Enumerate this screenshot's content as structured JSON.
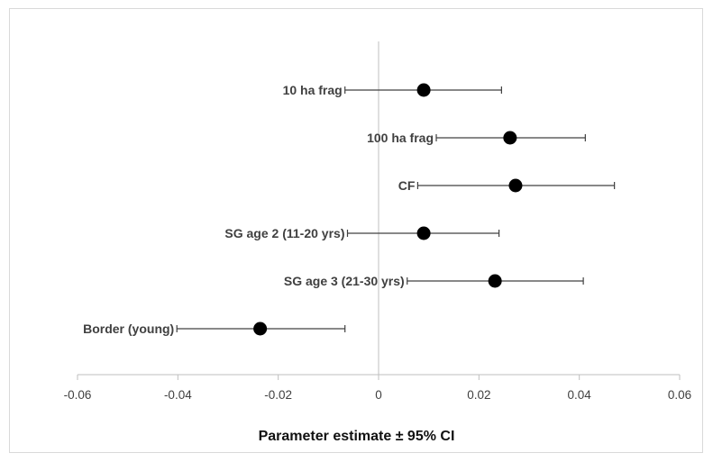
{
  "chart_data": {
    "type": "scatter",
    "xlabel": "Parameter estimate ± 95% CI",
    "xlim": [
      -0.06,
      0.06
    ],
    "xticks": [
      -0.06,
      -0.04,
      -0.02,
      0,
      0.02,
      0.04,
      0.06
    ],
    "xtick_labels": [
      "-0.06",
      "-0.04",
      "-0.02",
      "0",
      "0.02",
      "0.04",
      "0.06"
    ],
    "grid": false,
    "categories": [
      "10 ha frag",
      "100 ha frag",
      "CF",
      "SG age 2 (11-20 yrs)",
      "SG age 3 (21-30 yrs)",
      "Border (young)"
    ],
    "estimates": [
      0.009,
      0.0262,
      0.0273,
      0.009,
      0.0232,
      -0.0236
    ],
    "ci_low": [
      -0.0067,
      0.0115,
      0.0078,
      -0.0062,
      0.0057,
      -0.0402
    ],
    "ci_high": [
      0.0245,
      0.0412,
      0.047,
      0.024,
      0.0408,
      -0.0067
    ],
    "colors": {
      "point": "#000000",
      "errorbar": "#404040",
      "axis": "#bfbfbf"
    }
  }
}
